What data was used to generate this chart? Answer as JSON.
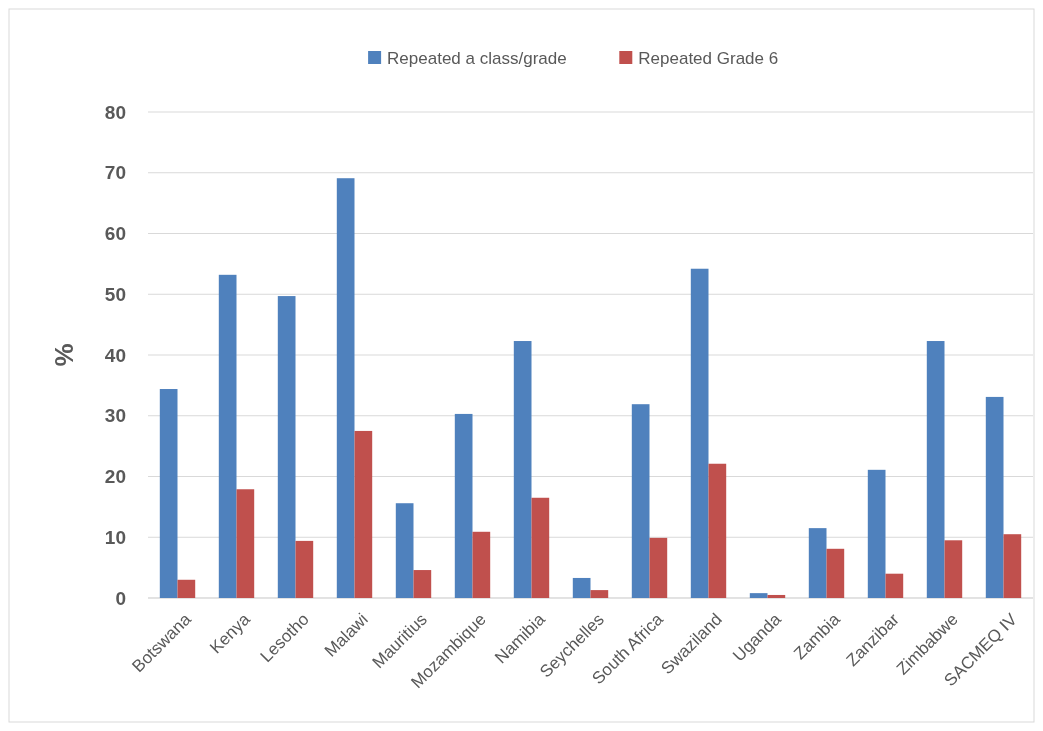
{
  "chart_data": {
    "type": "bar",
    "ylabel": "%",
    "categories": [
      "Botswana",
      "Kenya",
      "Lesotho",
      "Malawi",
      "Mauritius",
      "Mozambique",
      "Namibia",
      "Seychelles",
      "South Africa",
      "Swaziland",
      "Uganda",
      "Zambia",
      "Zanzibar",
      "Zimbabwe",
      "SACMEQ IV"
    ],
    "series": [
      {
        "name": "Repeated a class/grade",
        "color": "#4f81bd",
        "values": [
          34.4,
          53.2,
          49.7,
          69.1,
          15.6,
          30.3,
          42.3,
          3.3,
          31.9,
          54.2,
          0.8,
          11.5,
          21.1,
          42.3,
          33.1
        ]
      },
      {
        "name": "Repeated Grade 6",
        "color": "#c0504d",
        "values": [
          3.0,
          17.9,
          9.4,
          27.5,
          4.6,
          10.9,
          16.5,
          1.3,
          9.9,
          22.1,
          0.5,
          8.1,
          4.0,
          9.5,
          10.5
        ]
      }
    ],
    "ylim": [
      0,
      80
    ],
    "yticks": [
      0,
      10,
      20,
      30,
      40,
      50,
      60,
      70,
      80
    ],
    "grid": "y",
    "legend": "top"
  }
}
